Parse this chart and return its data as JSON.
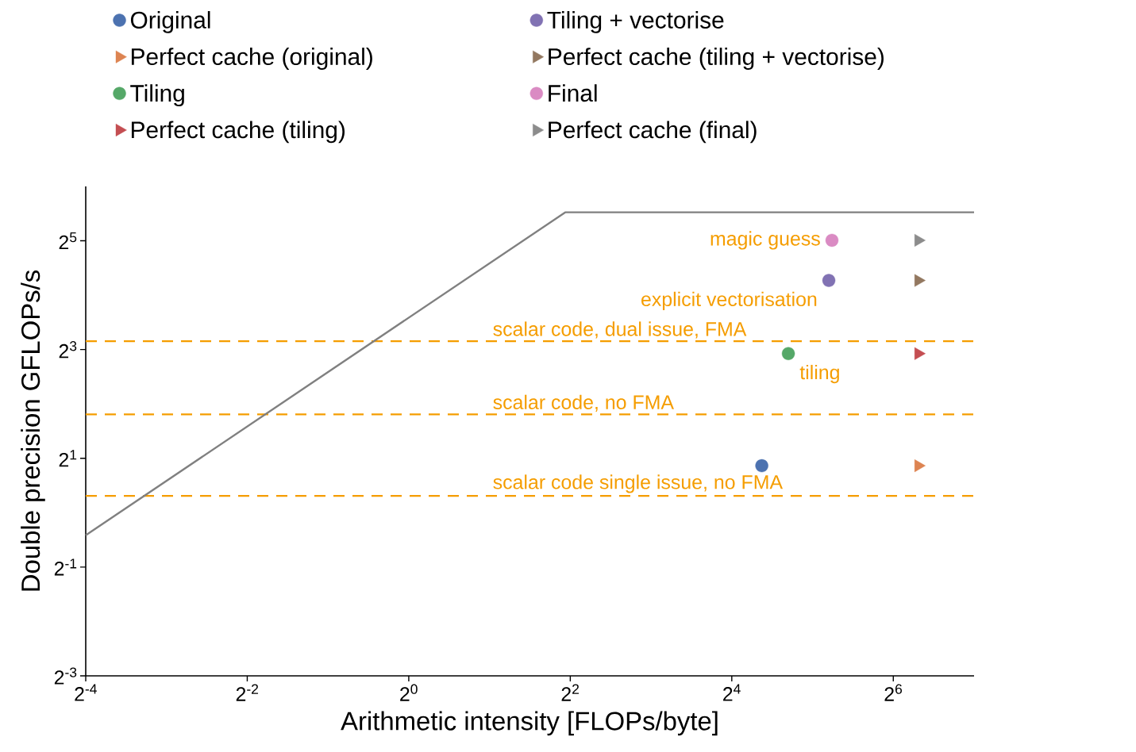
{
  "chart_data": {
    "type": "scatter",
    "xlabel": "Arithmetic intensity [FLOPs/byte]",
    "ylabel": "Double precision GFLOPs/s",
    "log": "xy",
    "legend": "top",
    "grid": false,
    "xlim": [
      0.0625,
      128
    ],
    "ylim": [
      0.125,
      64
    ],
    "xticks": [
      {
        "value": 0.0625,
        "label": "2$^{-4}$"
      },
      {
        "value": 0.25,
        "label": "2$^{-2}$"
      },
      {
        "value": 1,
        "label": "2$^{0}$"
      },
      {
        "value": 4,
        "label": "2$^{2}$"
      },
      {
        "value": 16,
        "label": "2$^{4}$"
      },
      {
        "value": 64,
        "label": "2$^{6}$"
      }
    ],
    "yticks": [
      {
        "value": 0.125,
        "label": "2$^{-3}$"
      },
      {
        "value": 0.5,
        "label": "2$^{-1}$"
      },
      {
        "value": 2,
        "label": "2$^{1}$"
      },
      {
        "value": 8,
        "label": "2$^{3}$"
      },
      {
        "value": 32,
        "label": "2$^{5}$"
      }
    ],
    "series": [
      {
        "type": "line",
        "color": "#808080",
        "marker": "none",
        "x": [
          0.0625,
          3.83,
          128
        ],
        "values": [
          0.75,
          46,
          46
        ]
      },
      {
        "name": "Original",
        "color": "#4c72b0",
        "marker": "circle",
        "x": [
          20.7
        ],
        "values": [
          1.82
        ]
      },
      {
        "name": "Tiling + vectorise",
        "color": "#8172b3",
        "marker": "circle",
        "x": [
          36.8
        ],
        "values": [
          19.3
        ]
      },
      {
        "name": "Perfect cache (original)",
        "color": "#dd8452",
        "marker": "triangle",
        "x": [
          79.3
        ],
        "values": [
          1.82
        ]
      },
      {
        "name": "Perfect cache (tiling + vectorise)",
        "color": "#937860",
        "marker": "triangle",
        "x": [
          79.3
        ],
        "values": [
          19.3
        ]
      },
      {
        "name": "Tiling",
        "color": "#55a868",
        "marker": "circle",
        "x": [
          26
        ],
        "values": [
          7.6
        ]
      },
      {
        "name": "Final",
        "color": "#da8bc3",
        "marker": "circle",
        "x": [
          37.8
        ],
        "values": [
          32.2
        ]
      },
      {
        "name": "Perfect cache (tiling)",
        "color": "#c44e52",
        "marker": "triangle",
        "x": [
          79.3
        ],
        "values": [
          7.6
        ]
      },
      {
        "name": "Perfect cache (final)",
        "color": "#8c8c8c",
        "marker": "triangle",
        "x": [
          79.3
        ],
        "values": [
          32.2
        ]
      }
    ],
    "ref_lines": [
      {
        "axis": "y",
        "value": 8.9,
        "label": "scalar code, dual issue, FMA",
        "color": "#f59d00",
        "line_style": "dashed"
      },
      {
        "axis": "y",
        "value": 3.5,
        "label": "scalar code, no FMA",
        "color": "#f59d00",
        "line_style": "dashed"
      },
      {
        "axis": "y",
        "value": 1.24,
        "label": "scalar code single issue, no FMA",
        "color": "#f59d00",
        "line_style": "dashed"
      }
    ],
    "annotations": [
      {
        "text": "magic guess",
        "x": 37.8,
        "y": 32.2
      },
      {
        "text": "explicit vectorisation",
        "x": 36.8,
        "y": 19.3
      },
      {
        "text": "tiling",
        "x": 26,
        "y": 7.6
      }
    ]
  }
}
